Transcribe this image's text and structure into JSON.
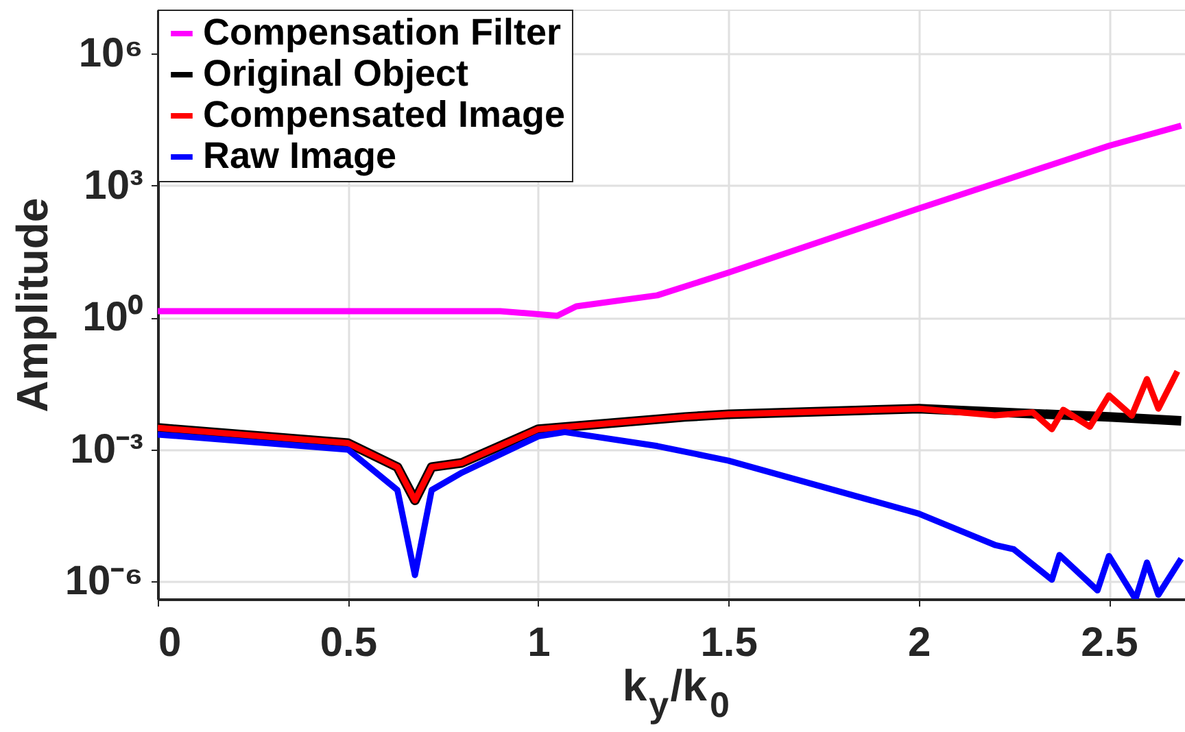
{
  "chart_data": {
    "type": "line",
    "xlabel": "k$_{y}$/k$_{0}$",
    "ylabel": "Amplitude",
    "log": "y",
    "grid": true,
    "legend": "top left",
    "line_style": "solid",
    "marker": "none",
    "xlim": [
      0,
      2.7
    ],
    "xticks": [
      0,
      0.5,
      1,
      1.5,
      2,
      2.5
    ],
    "ylim": [
      4e-07,
      10000000.0
    ],
    "yticks": [
      {
        "value": 1e-06,
        "label": "10⁻⁶"
      },
      {
        "value": 0.001,
        "label": "10⁻³"
      },
      {
        "value": 1,
        "label": "10⁰"
      },
      {
        "value": 1000.0,
        "label": "10³"
      },
      {
        "value": 1000000.0,
        "label": "10⁶"
      }
    ],
    "series": [
      {
        "name": "Compensation Filter",
        "color": "#ff00ff",
        "x": [
          0,
          0.5,
          0.9,
          1.05,
          1.1,
          1.313,
          1.5,
          2.0,
          2.5,
          2.69
        ],
        "values": [
          1.4,
          1.4,
          1.4,
          1.1,
          1.8,
          3.2,
          10.5,
          300,
          8000,
          23000
        ]
      },
      {
        "name": "Original Object",
        "color": "#000000",
        "x": [
          0,
          0.5,
          0.63,
          0.676,
          0.72,
          0.8,
          1.0,
          1.385,
          1.5,
          2.0,
          2.5,
          2.69
        ],
        "values": [
          0.0031,
          0.0014,
          0.0004,
          7e-05,
          0.0004,
          0.0005,
          0.0029,
          0.0055,
          0.0063,
          0.0085,
          0.0055,
          0.0045
        ]
      },
      {
        "name": "Compensated Image",
        "color": "#ff0000",
        "x": [
          0,
          0.5,
          0.63,
          0.676,
          0.72,
          0.8,
          1.0,
          1.385,
          1.5,
          2.0,
          2.2,
          2.3,
          2.35,
          2.38,
          2.45,
          2.5,
          2.56,
          2.6,
          2.63,
          2.68
        ],
        "values": [
          0.0031,
          0.0014,
          0.0004,
          7e-05,
          0.0004,
          0.0005,
          0.0029,
          0.0055,
          0.0063,
          0.0085,
          0.006,
          0.007,
          0.0029,
          0.008,
          0.0033,
          0.017,
          0.0059,
          0.04,
          0.0085,
          0.06
        ]
      },
      {
        "name": "Raw Image",
        "color": "#0000ff",
        "x": [
          0,
          0.5,
          0.63,
          0.676,
          0.72,
          0.8,
          1.0,
          1.07,
          1.313,
          1.5,
          2.0,
          2.2,
          2.25,
          2.35,
          2.37,
          2.47,
          2.5,
          2.57,
          2.6,
          2.63,
          2.69
        ],
        "values": [
          0.0022,
          0.001,
          0.00012,
          1.4e-06,
          0.00012,
          0.0003,
          0.002,
          0.0025,
          0.0012,
          0.00056,
          3.5e-05,
          6.8e-06,
          5.4e-06,
          1.1e-06,
          4e-06,
          6.3e-07,
          3.8e-06,
          4e-07,
          2.7e-06,
          5e-07,
          3.3e-06
        ]
      }
    ]
  }
}
